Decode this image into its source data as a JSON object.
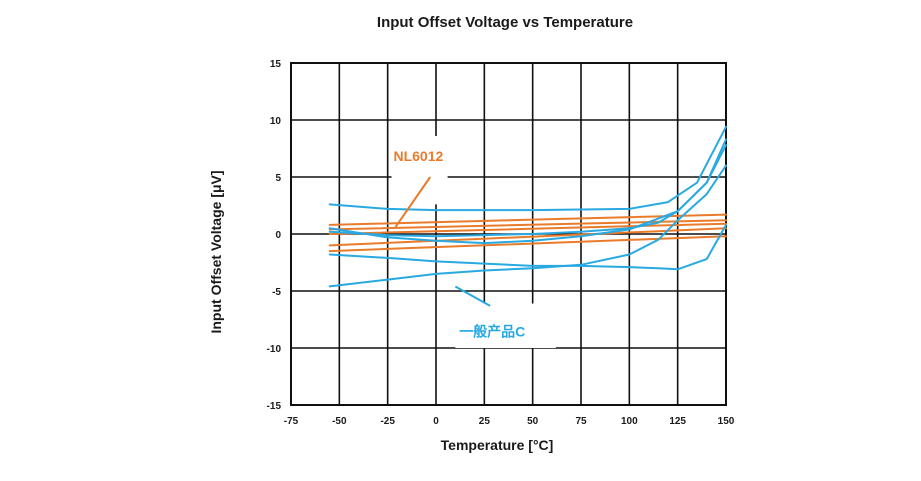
{
  "chart_data": {
    "type": "line",
    "title": "Input Offset Voltage vs Temperature",
    "xlabel": "Temperature [°C]",
    "ylabel": "Input Offset Voltage [μV]",
    "xlim": [
      -75,
      150
    ],
    "ylim": [
      -15,
      15
    ],
    "x_ticks": [
      -75,
      -50,
      -25,
      0,
      25,
      50,
      75,
      100,
      125,
      150
    ],
    "y_ticks": [
      15,
      10,
      5,
      0,
      -5,
      -10,
      -15
    ],
    "grid": true,
    "colors": {
      "NL6012": "#e97b2c",
      "一般产品C": "#29a9e1"
    },
    "annotations": [
      {
        "text": "NL6012",
        "group": "NL6012"
      },
      {
        "text": "一般产品C",
        "group": "一般产品C"
      }
    ],
    "series": [
      {
        "group": "NL6012",
        "x": [
          -55,
          150
        ],
        "y": [
          0.8,
          1.7
        ]
      },
      {
        "group": "NL6012",
        "x": [
          -55,
          150
        ],
        "y": [
          0.4,
          1.2
        ]
      },
      {
        "group": "NL6012",
        "x": [
          -55,
          150
        ],
        "y": [
          0.0,
          0.9
        ]
      },
      {
        "group": "NL6012",
        "x": [
          -55,
          150
        ],
        "y": [
          -1.0,
          0.5
        ]
      },
      {
        "group": "NL6012",
        "x": [
          -55,
          150
        ],
        "y": [
          -1.5,
          -0.2
        ]
      },
      {
        "group": "一般产品C",
        "x": [
          -55,
          -25,
          0,
          50,
          100,
          120,
          135,
          150
        ],
        "y": [
          2.6,
          2.2,
          2.1,
          2.1,
          2.2,
          2.8,
          4.5,
          9.4
        ]
      },
      {
        "group": "一般产品C",
        "x": [
          -55,
          -25,
          0,
          25,
          50,
          75,
          100,
          125,
          140,
          150
        ],
        "y": [
          0.5,
          -0.3,
          -0.6,
          -0.8,
          -0.6,
          -0.2,
          0.4,
          2.0,
          4.5,
          7.8
        ]
      },
      {
        "group": "一般产品C",
        "x": [
          -55,
          -25,
          0,
          25,
          50,
          75,
          100,
          115,
          125,
          140,
          150
        ],
        "y": [
          0.2,
          -0.1,
          -0.2,
          -0.1,
          0.0,
          0.2,
          0.5,
          1.0,
          2.0,
          4.5,
          8.3
        ]
      },
      {
        "group": "一般产品C",
        "x": [
          -55,
          -25,
          0,
          25,
          50,
          75,
          100,
          115,
          125,
          140,
          150
        ],
        "y": [
          -1.8,
          -2.1,
          -2.4,
          -2.6,
          -2.8,
          -2.8,
          -2.9,
          -3.0,
          -3.1,
          -2.2,
          0.8
        ]
      },
      {
        "group": "一般产品C",
        "x": [
          -55,
          -25,
          0,
          25,
          50,
          75,
          100,
          115,
          125,
          140,
          150
        ],
        "y": [
          -4.6,
          -4.0,
          -3.5,
          -3.2,
          -3.0,
          -2.7,
          -1.8,
          -0.5,
          1.2,
          3.5,
          6.0
        ]
      }
    ]
  }
}
